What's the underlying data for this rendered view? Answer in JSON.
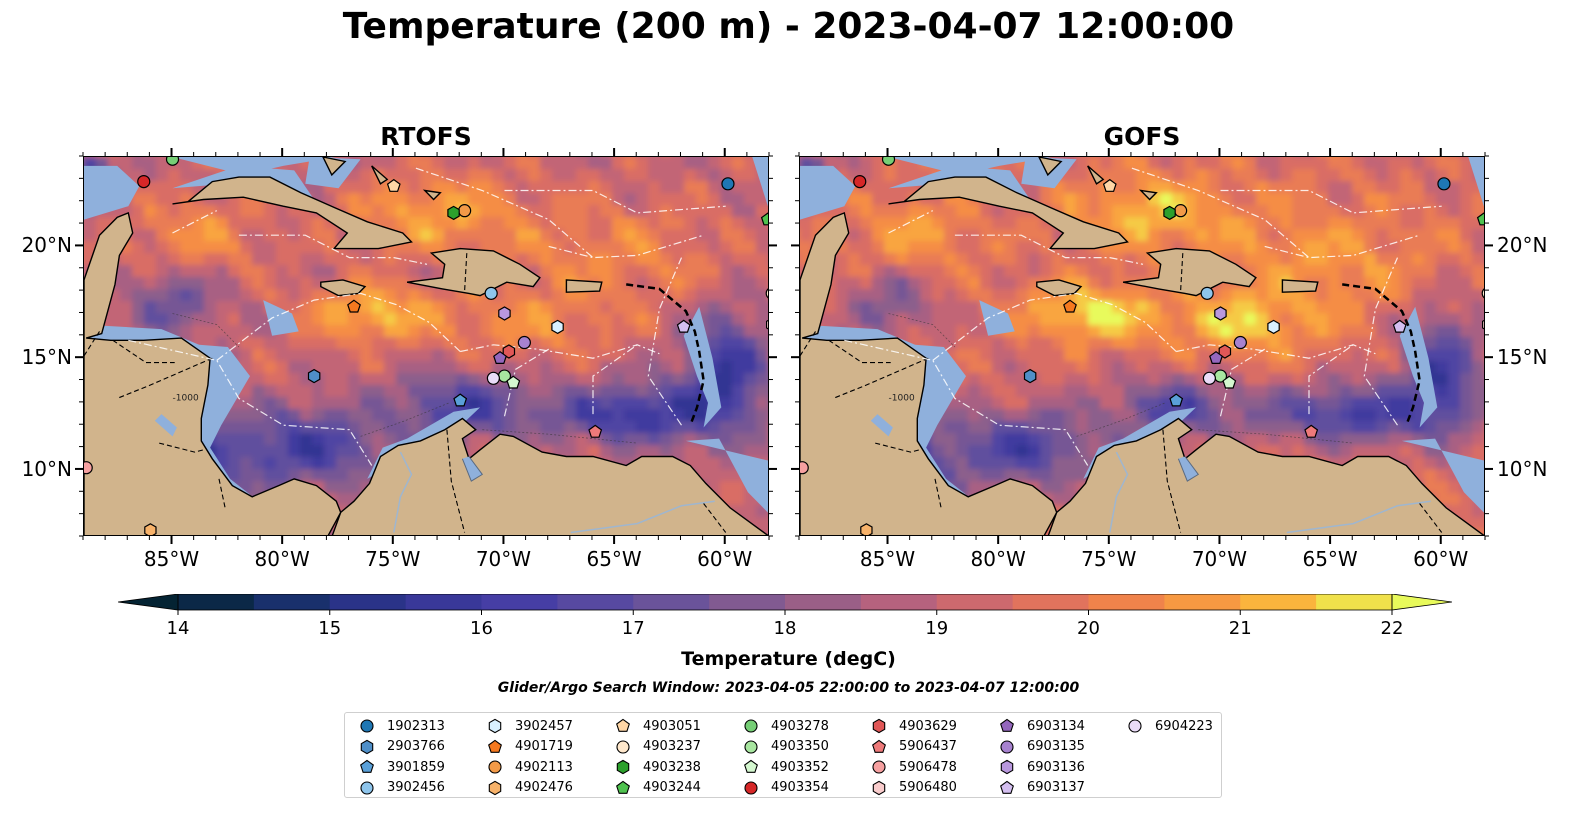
{
  "title": "Temperature (200 m) - 2023-04-07 12:00:00",
  "panels": [
    {
      "title": "RTOFS",
      "variant": 0
    },
    {
      "title": "GOFS",
      "variant": 1
    }
  ],
  "lon_ticks": [
    "85°W",
    "80°W",
    "75°W",
    "70°W",
    "65°W",
    "60°W"
  ],
  "lat_ticks": [
    "20°N",
    "15°N",
    "10°N"
  ],
  "colorbar": {
    "label": "Temperature (degC)",
    "ticks": [
      "14",
      "15",
      "16",
      "17",
      "18",
      "19",
      "20",
      "21",
      "22"
    ],
    "vmin": 14,
    "vmax": 22,
    "step": 0.5,
    "colormap": "thermal"
  },
  "search_window": "Glider/Argo Search Window: 2023-04-05 22:00:00 to 2023-04-07 12:00:00",
  "contour_label": "-1000",
  "map_colors": {
    "land": "#d1b48c",
    "shelf_water": "#8fb0dc",
    "deep_cold": "#06202e",
    "eez_lines": "#ffffff",
    "coast": "#000000"
  },
  "floats": [
    {
      "id": "1902313",
      "marker": "circle",
      "color": "#1f77b4",
      "lon": -59.9,
      "lat": 22.8
    },
    {
      "id": "2903766",
      "marker": "hexagon",
      "color": "#4f8fc8",
      "lon": -78.6,
      "lat": 14.2
    },
    {
      "id": "3901859",
      "marker": "pentagon",
      "color": "#5aa0d8",
      "lon": -72.0,
      "lat": 13.1
    },
    {
      "id": "3902456",
      "marker": "circle",
      "color": "#8ec5ec",
      "lon": -70.6,
      "lat": 17.9
    },
    {
      "id": "3902457",
      "marker": "hexagon",
      "color": "#d8f0ff",
      "lon": -67.6,
      "lat": 16.4
    },
    {
      "id": "4901719",
      "marker": "pentagon",
      "color": "#f5791f",
      "lon": -76.8,
      "lat": 17.3
    },
    {
      "id": "4902113",
      "marker": "circle",
      "color": "#f29a48",
      "lon": -71.8,
      "lat": 21.6
    },
    {
      "id": "4902476",
      "marker": "hexagon",
      "color": "#f7b26a",
      "lon": -86.0,
      "lat": 7.3
    },
    {
      "id": "4903051",
      "marker": "pentagon",
      "color": "#ffd6a6",
      "lon": -75.0,
      "lat": 22.7
    },
    {
      "id": "4903237",
      "marker": "circle",
      "color": "#ffe8cc",
      "lon": -57.9,
      "lat": 17.9
    },
    {
      "id": "4903238",
      "marker": "hexagon",
      "color": "#2ca02c",
      "lon": -72.3,
      "lat": 21.5
    },
    {
      "id": "4903244",
      "marker": "pentagon",
      "color": "#4fc24f",
      "lon": -58.1,
      "lat": 21.2
    },
    {
      "id": "4903278",
      "marker": "circle",
      "color": "#76cf76",
      "lon": -85.0,
      "lat": 23.9
    },
    {
      "id": "4903350",
      "marker": "circle",
      "color": "#a8e6a0",
      "lon": -70.0,
      "lat": 14.2
    },
    {
      "id": "4903352",
      "marker": "pentagon",
      "color": "#d4f7cf",
      "lon": -69.6,
      "lat": 13.9
    },
    {
      "id": "4903354",
      "marker": "circle",
      "color": "#d62728",
      "lon": -86.3,
      "lat": 22.9
    },
    {
      "id": "4903629",
      "marker": "hexagon",
      "color": "#e15757",
      "lon": -69.8,
      "lat": 15.3
    },
    {
      "id": "5906437",
      "marker": "pentagon",
      "color": "#ee7a7a",
      "lon": -65.9,
      "lat": 11.7
    },
    {
      "id": "5906478",
      "marker": "circle",
      "color": "#f6a0a0",
      "lon": -88.9,
      "lat": 10.1
    },
    {
      "id": "5906480",
      "marker": "hexagon",
      "color": "#f9cccc",
      "lon": -57.9,
      "lat": 16.5
    },
    {
      "id": "6903134",
      "marker": "pentagon",
      "color": "#9467bd",
      "lon": -70.2,
      "lat": 15.0
    },
    {
      "id": "6903135",
      "marker": "circle",
      "color": "#a782cf",
      "lon": -69.1,
      "lat": 15.7
    },
    {
      "id": "6903136",
      "marker": "hexagon",
      "color": "#b998de",
      "lon": -70.0,
      "lat": 17.0
    },
    {
      "id": "6903137",
      "marker": "pentagon",
      "color": "#d4bff0",
      "lon": -61.9,
      "lat": 16.4
    },
    {
      "id": "6904223",
      "marker": "circle",
      "color": "#eadcf8",
      "lon": -70.5,
      "lat": 14.1
    }
  ]
}
